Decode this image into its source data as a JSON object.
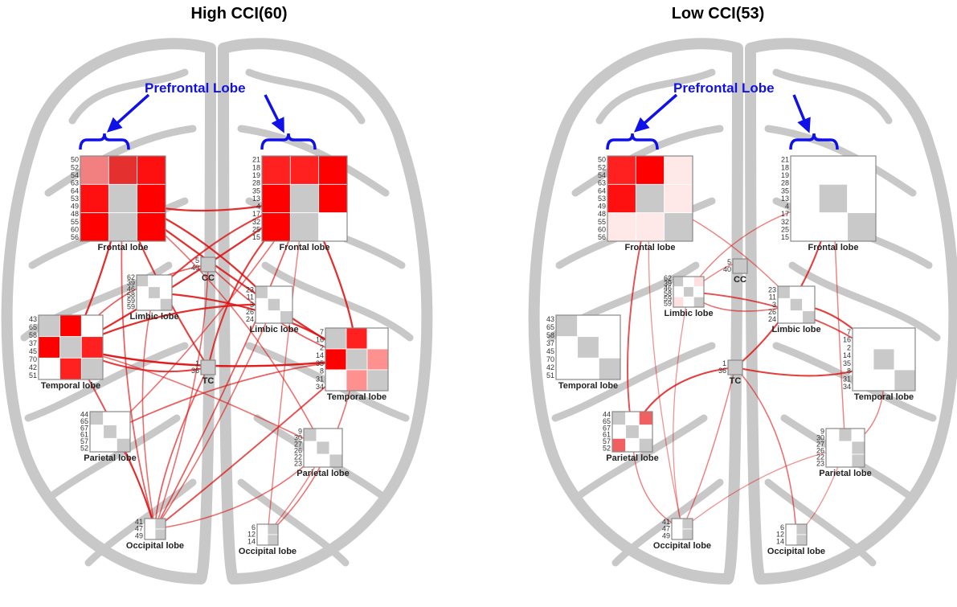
{
  "panels": [
    {
      "id": "high",
      "title": "High CCI(60)",
      "prefrontal_label": "Prefrontal Lobe",
      "regions": [
        {
          "label": "Frontal lobe",
          "key": "FL",
          "ticks": [
            "50",
            "52",
            "54",
            "63",
            "64",
            "53",
            "49",
            "48",
            "55",
            "60",
            "56"
          ],
          "cells": [
            "#f28080",
            "#e53030",
            "#ff1010",
            "#ff1010",
            "#c9c9c9",
            "#ff0000",
            "#ff0000",
            "#c9c9c9",
            "#ff0000"
          ]
        },
        {
          "label": "Frontal lobe",
          "key": "FR",
          "ticks": [
            "21",
            "18",
            "19",
            "28",
            "35",
            "13",
            "4",
            "17",
            "32",
            "25",
            "15"
          ],
          "cells": [
            "#ff2020",
            "#ff2020",
            "#ff0000",
            "#ff0000",
            "#c9c9c9",
            "#ff0000",
            "#ff0000",
            "#c9c9c9",
            "#ffffff"
          ]
        },
        {
          "label": "CC",
          "key": "CC",
          "ticks": [
            "5",
            "40"
          ],
          "cells": [
            "#c9c9c9"
          ]
        },
        {
          "label": "Limbic lobe",
          "key": "LL",
          "ticks": [
            "62",
            "39",
            "46",
            "58",
            "59",
            "59"
          ],
          "cells": [
            "#c9c9c9",
            "#ffffff",
            "#ffffff",
            "#ffffff",
            "#c9c9c9",
            "#ffffff",
            "#ffffff",
            "#ffffff",
            "#c9c9c9"
          ]
        },
        {
          "label": "Limbic lobe",
          "key": "LR",
          "ticks": [
            "23",
            "11",
            "3",
            "26",
            "24"
          ],
          "cells": [
            "#c9c9c9",
            "#ffffff",
            "#ffffff",
            "#ffffff",
            "#c9c9c9",
            "#ffffff",
            "#ffffff",
            "#ffffff",
            "#c9c9c9"
          ]
        },
        {
          "label": "Temporal lobe",
          "key": "TL",
          "ticks": [
            "43",
            "65",
            "58",
            "37",
            "45",
            "70",
            "42",
            "51"
          ],
          "cells": [
            "#c9c9c9",
            "#ff0000",
            "#ffffff",
            "#ff0000",
            "#c9c9c9",
            "#ff2020",
            "#ffffff",
            "#ff2020",
            "#c9c9c9"
          ]
        },
        {
          "label": "Temporal lobe",
          "key": "TR",
          "ticks": [
            "7",
            "16",
            "2",
            "14",
            "35",
            "8",
            "31",
            "34"
          ],
          "cells": [
            "#c9c9c9",
            "#ff2020",
            "#ffffff",
            "#ff0000",
            "#c9c9c9",
            "#ff9090",
            "#ffffff",
            "#ff9090",
            "#c9c9c9"
          ]
        },
        {
          "label": "TC",
          "key": "TC",
          "ticks": [
            "1",
            "36"
          ],
          "cells": [
            "#c9c9c9"
          ]
        },
        {
          "label": "Parietal lobe",
          "key": "PL",
          "ticks": [
            "44",
            "65",
            "67",
            "61",
            "57",
            "52"
          ],
          "cells": [
            "#c9c9c9",
            "#ffffff",
            "#ffffff",
            "#ffffff",
            "#c9c9c9",
            "#ffffff",
            "#ffffff",
            "#ffffff",
            "#c9c9c9"
          ]
        },
        {
          "label": "Parietal lobe",
          "key": "PR",
          "ticks": [
            "9",
            "30",
            "27",
            "26",
            "22",
            "23"
          ],
          "cells": [
            "#c9c9c9",
            "#ffffff",
            "#ffffff",
            "#ffffff",
            "#c9c9c9",
            "#ffffff",
            "#ffffff",
            "#ffffff",
            "#c9c9c9"
          ]
        },
        {
          "label": "Occipital lobe",
          "key": "OL",
          "ticks": [
            "41",
            "47",
            "49"
          ],
          "cells": [
            "#ffffff",
            "#c9c9c9",
            "#ffffff",
            "#c9c9c9"
          ]
        },
        {
          "label": "Occipital lobe",
          "key": "OR",
          "ticks": [
            "6",
            "12",
            "14"
          ],
          "cells": [
            "#ffffff",
            "#c9c9c9",
            "#ffffff",
            "#c9c9c9"
          ]
        }
      ],
      "edges": [
        [
          "FL",
          "FR",
          0.9
        ],
        [
          "FL",
          "LR",
          0.9
        ],
        [
          "FL",
          "TR",
          0.9
        ],
        [
          "FL",
          "TC",
          0.8
        ],
        [
          "FL",
          "TL",
          0.9
        ],
        [
          "FL",
          "PR",
          0.5
        ],
        [
          "FR",
          "TL",
          0.9
        ],
        [
          "FR",
          "LL",
          0.8
        ],
        [
          "FR",
          "TR",
          0.9
        ],
        [
          "FR",
          "TC",
          0.8
        ],
        [
          "FR",
          "PL",
          0.5
        ],
        [
          "FR",
          "OL",
          0.6
        ],
        [
          "TL",
          "TR",
          1.0
        ],
        [
          "TL",
          "LR",
          0.9
        ],
        [
          "TL",
          "OL",
          0.7
        ],
        [
          "TL",
          "PR",
          0.5
        ],
        [
          "TL",
          "TC",
          0.8
        ],
        [
          "TR",
          "LL",
          0.9
        ],
        [
          "TR",
          "OL",
          0.7
        ],
        [
          "TR",
          "PL",
          0.6
        ],
        [
          "TR",
          "OR",
          0.5
        ],
        [
          "LL",
          "OL",
          0.5
        ],
        [
          "LR",
          "OL",
          0.5
        ],
        [
          "CC",
          "OL",
          0.5
        ],
        [
          "TC",
          "OL",
          0.6
        ],
        [
          "PL",
          "OL",
          0.6
        ],
        [
          "PR",
          "OL",
          0.5
        ],
        [
          "CC",
          "TL",
          0.6
        ],
        [
          "CC",
          "TR",
          0.6
        ],
        [
          "PR",
          "OR",
          0.4
        ],
        [
          "FL",
          "OL",
          0.6
        ],
        [
          "FR",
          "OR",
          0.4
        ]
      ]
    },
    {
      "id": "low",
      "title": "Low CCI(53)",
      "prefrontal_label": "Prefrontal Lobe",
      "regions": [
        {
          "label": "Frontal lobe",
          "key": "FL",
          "ticks": [
            "50",
            "52",
            "54",
            "63",
            "64",
            "53",
            "49",
            "48",
            "55",
            "60",
            "56"
          ],
          "cells": [
            "#ff2020",
            "#ff0000",
            "#ffe8e8",
            "#ff1010",
            "#c9c9c9",
            "#ffe8e8",
            "#ffe8e8",
            "#ffe8e8",
            "#c9c9c9"
          ]
        },
        {
          "label": "Frontal lobe",
          "key": "FR",
          "ticks": [
            "21",
            "18",
            "19",
            "28",
            "35",
            "13",
            "4",
            "17",
            "32",
            "25",
            "15"
          ],
          "cells": [
            "#ffffff",
            "#ffffff",
            "#ffffff",
            "#ffffff",
            "#c9c9c9",
            "#ffffff",
            "#ffffff",
            "#ffffff",
            "#c9c9c9"
          ]
        },
        {
          "label": "CC",
          "key": "CC",
          "ticks": [
            "5",
            "40"
          ],
          "cells": [
            "#c9c9c9"
          ]
        },
        {
          "label": "Limbic lobe",
          "key": "LL",
          "ticks": [
            "62",
            "39",
            "46",
            "58",
            "59",
            "59"
          ],
          "cells": [
            "#c9c9c9",
            "#ffffff",
            "#ffe0e0",
            "#ffffff",
            "#c9c9c9",
            "#ffffff",
            "#ffe0e0",
            "#ffffff",
            "#c9c9c9"
          ]
        },
        {
          "label": "Limbic lobe",
          "key": "LR",
          "ticks": [
            "23",
            "11",
            "3",
            "26",
            "24"
          ],
          "cells": [
            "#c9c9c9",
            "#ffffff",
            "#ffffff",
            "#ffffff",
            "#c9c9c9",
            "#ffffff",
            "#ffffff",
            "#ffffff",
            "#c9c9c9"
          ]
        },
        {
          "label": "Temporal lobe",
          "key": "TL",
          "ticks": [
            "43",
            "65",
            "58",
            "37",
            "45",
            "70",
            "42",
            "51"
          ],
          "cells": [
            "#c9c9c9",
            "#ffffff",
            "#ffffff",
            "#ffffff",
            "#c9c9c9",
            "#ffffff",
            "#ffffff",
            "#ffffff",
            "#c9c9c9"
          ]
        },
        {
          "label": "Temporal lobe",
          "key": "TR",
          "ticks": [
            "7",
            "16",
            "2",
            "14",
            "35",
            "8",
            "31",
            "34"
          ],
          "cells": [
            "#ffffff",
            "#ffffff",
            "#ffffff",
            "#ffffff",
            "#c9c9c9",
            "#ffffff",
            "#ffffff",
            "#ffffff",
            "#c9c9c9"
          ]
        },
        {
          "label": "TC",
          "key": "TC",
          "ticks": [
            "1",
            "36"
          ],
          "cells": [
            "#c9c9c9"
          ]
        },
        {
          "label": "Parietal lobe",
          "key": "PL",
          "ticks": [
            "44",
            "65",
            "67",
            "61",
            "57",
            "52"
          ],
          "cells": [
            "#c9c9c9",
            "#ffffff",
            "#f06060",
            "#ffffff",
            "#c9c9c9",
            "#ffffff",
            "#f06060",
            "#ffffff",
            "#c9c9c9"
          ]
        },
        {
          "label": "Parietal lobe",
          "key": "PR",
          "ticks": [
            "9",
            "30",
            "27",
            "26",
            "22",
            "23"
          ],
          "cells": [
            "#ffffff",
            "#c9c9c9",
            "#ffffff",
            "#ffffff",
            "#ffffff",
            "#c9c9c9",
            "#ffffff",
            "#ffffff",
            "#c9c9c9"
          ]
        },
        {
          "label": "Occipital lobe",
          "key": "OL",
          "ticks": [
            "41",
            "47",
            "49"
          ],
          "cells": [
            "#ffffff",
            "#c9c9c9",
            "#ffffff",
            "#c9c9c9"
          ]
        },
        {
          "label": "Occipital lobe",
          "key": "OR",
          "ticks": [
            "6",
            "12",
            "14"
          ],
          "cells": [
            "#ffffff",
            "#c9c9c9",
            "#ffffff",
            "#c9c9c9"
          ]
        }
      ],
      "edges": [
        [
          "FL",
          "PL",
          0.7
        ],
        [
          "FL",
          "LR",
          0.4
        ],
        [
          "FR",
          "TC",
          0.8
        ],
        [
          "FR",
          "LL",
          0.4
        ],
        [
          "FR",
          "PR",
          0.4
        ],
        [
          "LL",
          "TR",
          0.7
        ],
        [
          "LL",
          "LR",
          0.5
        ],
        [
          "LR",
          "TR",
          0.8
        ],
        [
          "TC",
          "TR",
          0.8
        ],
        [
          "TC",
          "PL",
          0.8
        ],
        [
          "TC",
          "OL",
          0.4
        ],
        [
          "TC",
          "OR",
          0.5
        ],
        [
          "PL",
          "OL",
          0.4
        ],
        [
          "PR",
          "OL",
          0.3
        ],
        [
          "TR",
          "PR",
          0.4
        ],
        [
          "FL",
          "OL",
          0.3
        ],
        [
          "PR",
          "OR",
          0.3
        ],
        [
          "CC",
          "LL",
          0.4
        ],
        [
          "LL",
          "OL",
          0.3
        ]
      ]
    }
  ],
  "colors": {
    "brain": "#c8c8c8",
    "edge": "#e01010",
    "bracket": "#1010e8",
    "matrix_border": "#888888"
  }
}
